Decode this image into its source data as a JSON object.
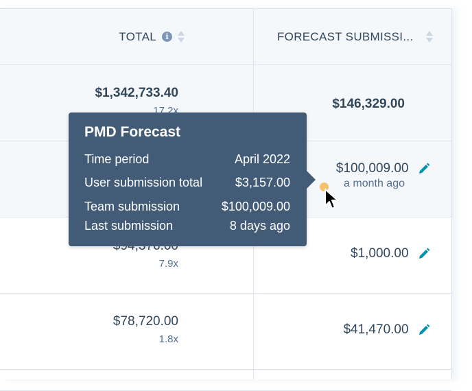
{
  "header": {
    "total_label": "TOTAL",
    "forecast_label": "FORECAST SUBMISSI..."
  },
  "rows": [
    {
      "total": "$1,342,733.40",
      "multiplier": "17.2x",
      "forecast": "$146,329.00"
    },
    {
      "total": "",
      "multiplier": "",
      "forecast": "$100,009.00",
      "forecast_sub": "a month ago"
    },
    {
      "total": "$94,376.00",
      "multiplier": "7.9x",
      "forecast": "$1,000.00"
    },
    {
      "total": "$78,720.00",
      "multiplier": "1.8x",
      "forecast": "$41,470.00"
    }
  ],
  "tooltip": {
    "title": "PMD Forecast",
    "items": [
      {
        "label": "Time period",
        "value": "April 2022"
      },
      {
        "label": "User submission total",
        "value": "$3,157.00"
      },
      {
        "label": "Team submission",
        "value": "$100,009.00"
      },
      {
        "label": "Last submission",
        "value": "8 days ago"
      }
    ]
  },
  "colors": {
    "tooltip_bg": "#425b76",
    "header_bg": "#f5f8fa",
    "edit_icon": "#0091ae",
    "status_dot": "#f5c26b",
    "text": "#33475b",
    "secondary_text": "#516f90"
  },
  "icons": [
    "info-icon",
    "sort-icon",
    "pencil-icon",
    "cursor-arrow-icon"
  ]
}
